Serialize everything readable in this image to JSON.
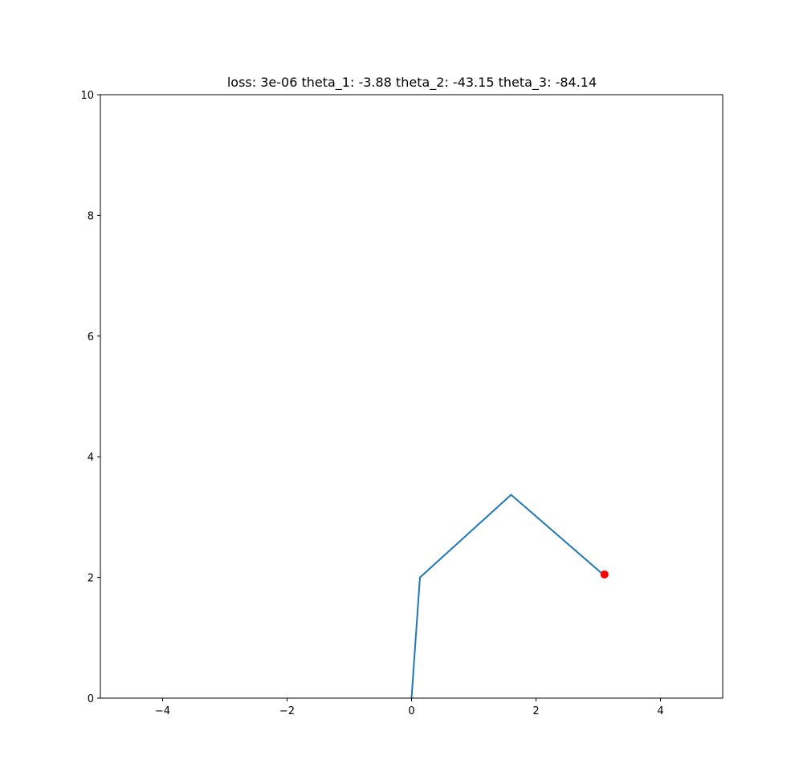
{
  "chart_data": {
    "type": "line",
    "title": "loss: 3e-06 theta_1: -3.88 theta_2: -43.15 theta_3: -84.14",
    "xlabel": "",
    "ylabel": "",
    "xlim": [
      -5,
      5
    ],
    "ylim": [
      0,
      10
    ],
    "xticks": [
      -4,
      -2,
      0,
      2,
      4
    ],
    "xtick_labels": [
      "−4",
      "−2",
      "0",
      "2",
      "4"
    ],
    "yticks": [
      0,
      2,
      4,
      6,
      8,
      10
    ],
    "ytick_labels": [
      "0",
      "2",
      "4",
      "6",
      "8",
      "10"
    ],
    "grid": false,
    "series": [
      {
        "type": "line",
        "color": "#1f77b4",
        "x": [
          0,
          0.135,
          1.6,
          3.1
        ],
        "y": [
          0,
          2.0,
          3.37,
          2.03
        ]
      }
    ],
    "target_point": {
      "type": "scatter",
      "color": "#ff0000",
      "x": 3.1,
      "y": 2.05
    }
  }
}
